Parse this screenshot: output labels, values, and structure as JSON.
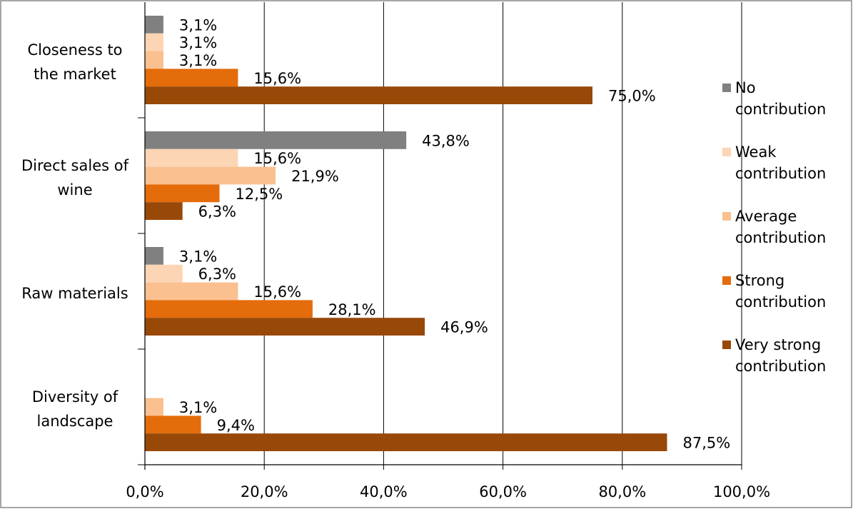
{
  "chart_data": {
    "type": "bar",
    "orientation": "horizontal",
    "title": "",
    "xlabel": "",
    "ylabel": "",
    "xlim": [
      0,
      100
    ],
    "x_ticks": [
      "0,0%",
      "20,0%",
      "40,0%",
      "60,0%",
      "80,0%",
      "100,0%"
    ],
    "grid": true,
    "legend_position": "right",
    "categories": [
      [
        "Closeness to",
        "the market"
      ],
      [
        "Direct sales of",
        "wine"
      ],
      [
        "Raw materials"
      ],
      [
        "Diversity of",
        "landscape"
      ]
    ],
    "series": [
      {
        "name": [
          "No",
          "contribution"
        ],
        "color": "#808080",
        "values": [
          3.1,
          43.8,
          3.1,
          null
        ],
        "labels": [
          "3,1%",
          "43,8%",
          "3,1%",
          ""
        ]
      },
      {
        "name": [
          "Weak",
          "contribution"
        ],
        "color": "#FCD5B5",
        "values": [
          3.1,
          15.6,
          6.3,
          null
        ],
        "labels": [
          "3,1%",
          "15,6%",
          "6,3%",
          ""
        ]
      },
      {
        "name": [
          "Average",
          "contribution"
        ],
        "color": "#FAC090",
        "values": [
          3.1,
          21.9,
          15.6,
          3.1
        ],
        "labels": [
          "3,1%",
          "21,9%",
          "15,6%",
          "3,1%"
        ]
      },
      {
        "name": [
          "Strong",
          "contribution"
        ],
        "color": "#E46C0A",
        "values": [
          15.6,
          12.5,
          28.1,
          9.4
        ],
        "labels": [
          "15,6%",
          "12,5%",
          "28,1%",
          "9,4%"
        ]
      },
      {
        "name": [
          "Very strong",
          "contribution"
        ],
        "color": "#984807",
        "values": [
          75.0,
          6.3,
          46.9,
          87.5
        ],
        "labels": [
          "75,0%",
          "6,3%",
          "46,9%",
          "87,5%"
        ]
      }
    ]
  }
}
